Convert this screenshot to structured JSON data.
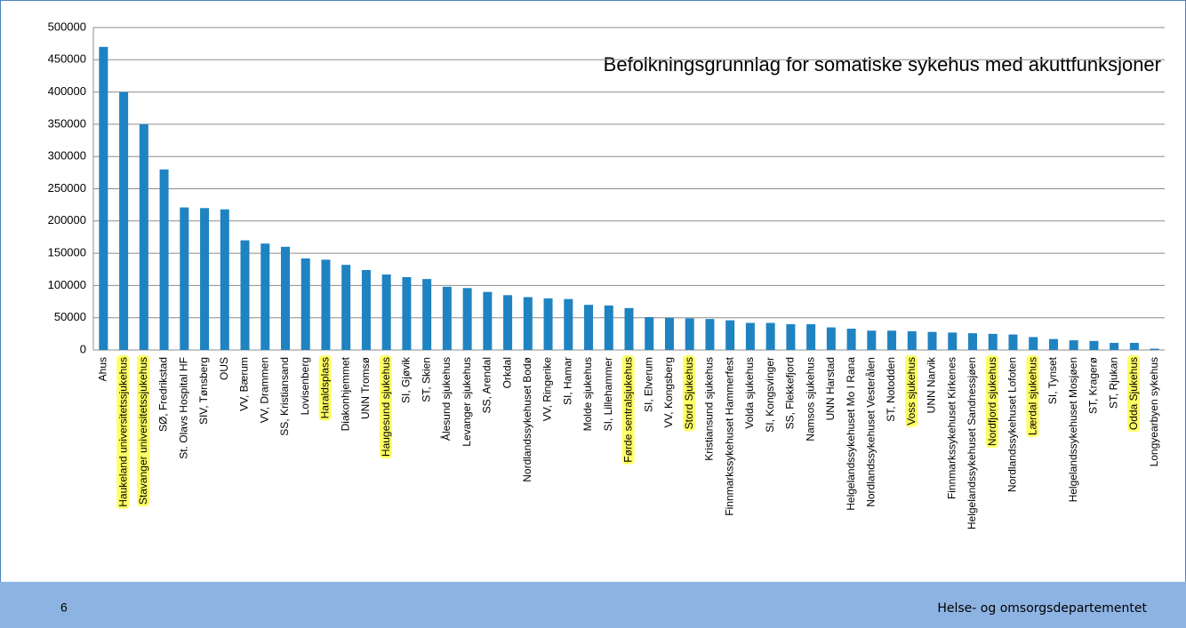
{
  "chart_data": {
    "type": "bar",
    "title": "Befolkningsgrunnlag for somatiske sykehus med akuttfunksjoner",
    "categories": [
      "Ahus",
      "Haukeland universitetssjukehus",
      "Stavanger universitetssjukehus",
      "SØ, Fredrikstad",
      "St. Olavs Hospital HF",
      "SIV, Tønsberg",
      "OUS",
      "VV, Bærum",
      "VV, Drammen",
      "SS, Kristiansand",
      "Lovisenberg",
      "Haraldsplass",
      "Diakonhjemmet",
      "UNN Tromsø",
      "Haugesund sjukehus",
      "SI, Gjøvik",
      "ST, Skien",
      "Ålesund sjukehus",
      "Levanger sjukehus",
      "SS, Arendal",
      "Orkdal",
      "Nordlandssykehuset Bodø",
      "VV, Ringerike",
      "SI, Hamar",
      "Molde sjukehus",
      "SI, Lillehammer",
      "Førde sentralsjukehus",
      "SI, Elverum",
      "VV, Kongsberg",
      "Stord Sjukehus",
      "Kristiansund sjukehus",
      "Finnmarkssykehuset Hammerfest",
      "Volda sjukehus",
      "SI, Kongsvinger",
      "SS, Flekkefjord",
      "Namsos sjukehus",
      "UNN Harstad",
      "Helgelandssykehuset Mo I Rana",
      "Nordlandssykehuset Vesterålen",
      "ST, Notodden",
      "Voss sjukehus",
      "UNN Narvik",
      "Finnmarkssykehuset Kirkenes",
      "Helgelandssykehuset Sandnessjøen",
      "Nordfjord sjukehus",
      "Nordlandssykehuset Lofoten",
      "Lærdal sjukehus",
      "SI, Tynset",
      "Helgelandssykehuset Mosjøen",
      "ST, Kragerø",
      "ST, Rjukan",
      "Odda Sjukehus",
      "Longyearbyen sykehus"
    ],
    "values": [
      470000,
      400000,
      350000,
      280000,
      221000,
      220000,
      218000,
      170000,
      165000,
      160000,
      142000,
      140000,
      132000,
      124000,
      117000,
      113000,
      110000,
      98000,
      96000,
      90000,
      85000,
      82000,
      80000,
      79000,
      70000,
      69000,
      65000,
      51000,
      50000,
      49000,
      48000,
      46000,
      42000,
      42000,
      40000,
      40000,
      35000,
      33000,
      30000,
      30000,
      29000,
      28000,
      27000,
      26000,
      25000,
      24000,
      20000,
      17000,
      15000,
      14000,
      11000,
      11000,
      2000
    ],
    "highlighted": [
      false,
      true,
      true,
      false,
      false,
      false,
      false,
      false,
      false,
      false,
      false,
      true,
      false,
      false,
      true,
      false,
      false,
      false,
      false,
      false,
      false,
      false,
      false,
      false,
      false,
      false,
      true,
      false,
      false,
      true,
      false,
      false,
      false,
      false,
      false,
      false,
      false,
      false,
      false,
      false,
      true,
      false,
      false,
      false,
      true,
      false,
      true,
      false,
      false,
      false,
      false,
      true,
      false
    ],
    "highlight_color": "#ffff66",
    "color": "#1f83c2",
    "ylim": [
      0,
      500000
    ],
    "yticks": [
      0,
      50000,
      100000,
      150000,
      200000,
      250000,
      300000,
      350000,
      400000,
      450000,
      500000
    ],
    "grid": true
  },
  "footer": {
    "page": "6",
    "text": "Helse- og omsorgsdepartementet"
  }
}
